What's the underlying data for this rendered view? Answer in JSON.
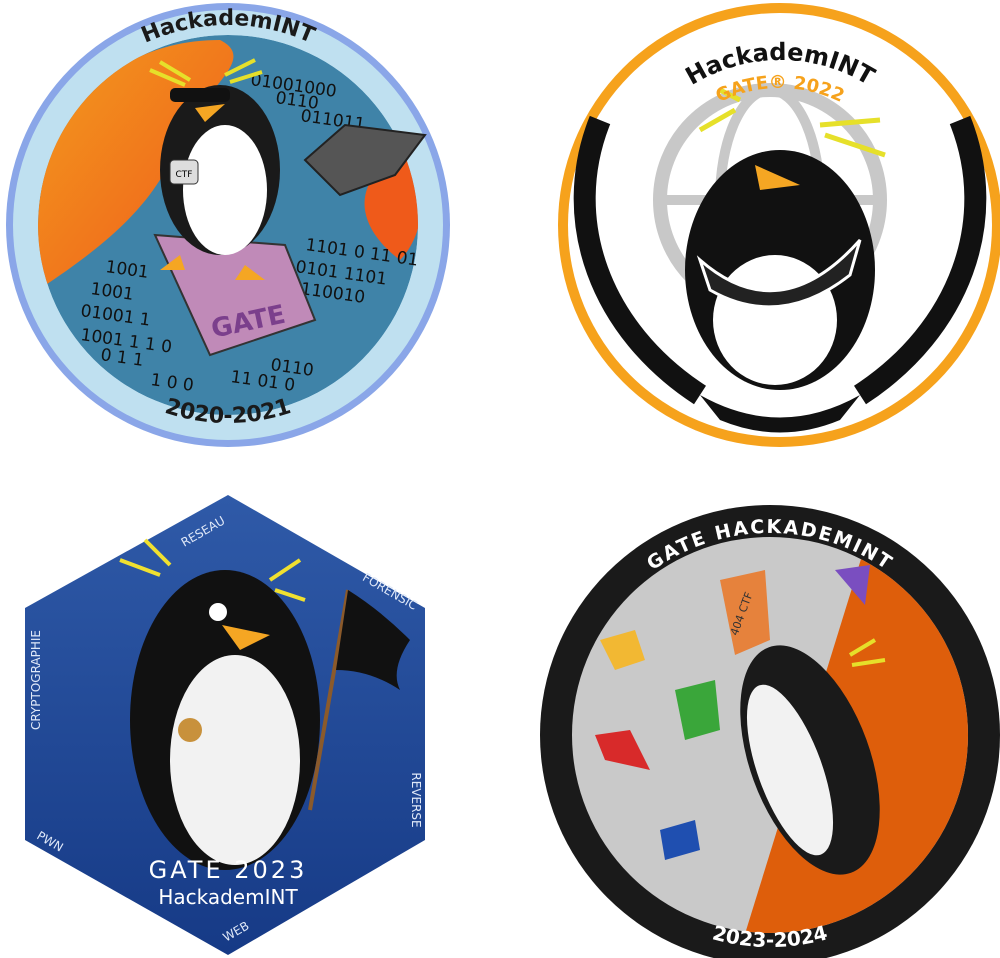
{
  "badges": [
    {
      "title": "HackademINT",
      "year": "2020-2021",
      "book": "GATE",
      "lock": "CTF",
      "binary": [
        "01001000",
        "0110",
        "011011",
        "1101 0 11 01",
        "0101 1101",
        "110010",
        "1001",
        "1001",
        "01001 1",
        "1001 1 1 0",
        "0 1 1",
        "1 0 0",
        "11 01 0",
        "0110"
      ]
    },
    {
      "title": "HackademINT",
      "subtitle": "GATE® 2022"
    },
    {
      "edges": [
        "RESEAU",
        "FORENSIC",
        "CRYPTOGRAPHIE",
        "REVERSE",
        "PWN",
        "WEB"
      ],
      "title": "GATE 2023",
      "subtitle": "HackademINT"
    },
    {
      "title": "GATE HACKADEMINT",
      "year": "2023-2024",
      "hold": "404 CTF"
    }
  ]
}
